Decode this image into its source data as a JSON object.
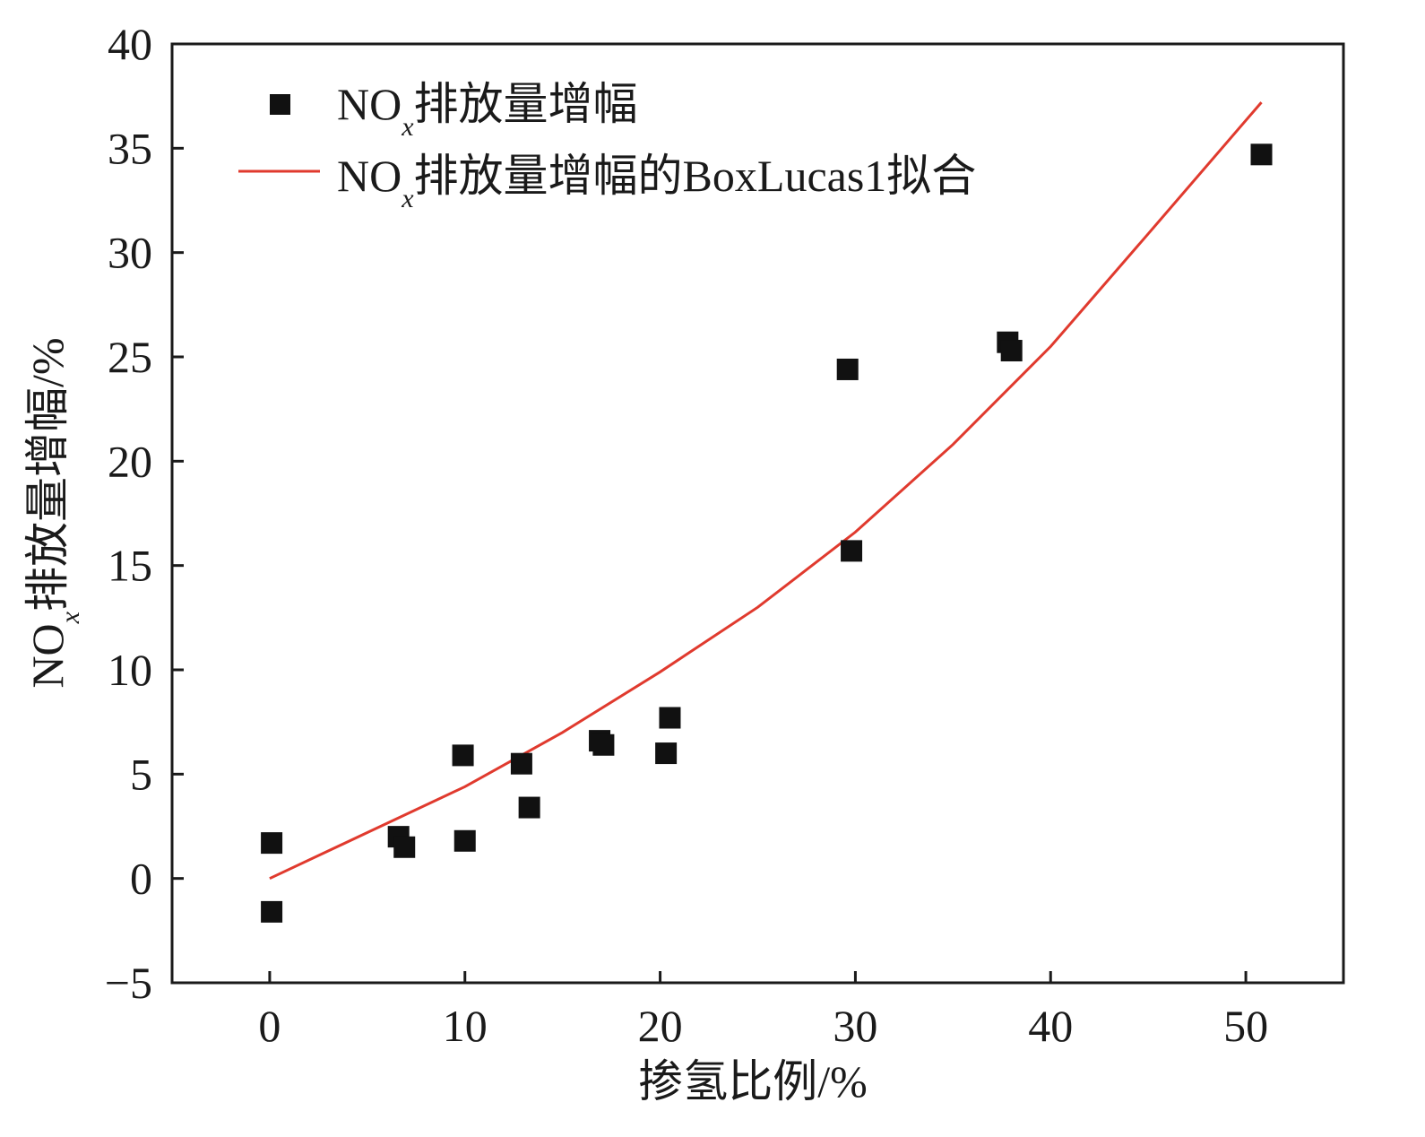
{
  "chart_data": {
    "type": "scatter",
    "xlabel": "掺氢比例/%",
    "ylabel": {
      "prefix": "NO",
      "sub": "x",
      "suffix": "排放量增幅/%"
    },
    "xlim": [
      -5,
      55
    ],
    "ylim": [
      -5,
      40
    ],
    "xticks": [
      0,
      10,
      20,
      30,
      40,
      50
    ],
    "yticks": [
      -5,
      0,
      5,
      10,
      15,
      20,
      25,
      30,
      35,
      40
    ],
    "grid": false,
    "legend_position": "top-left",
    "series": [
      {
        "name": {
          "prefix": "NO",
          "sub": "x",
          "suffix": "排放量增幅"
        },
        "kind": "scatter",
        "marker": "square",
        "color": "#111111",
        "points": [
          [
            0.1,
            1.7
          ],
          [
            0.1,
            -1.6
          ],
          [
            6.6,
            2.0
          ],
          [
            6.9,
            1.5
          ],
          [
            9.9,
            5.9
          ],
          [
            10.0,
            1.8
          ],
          [
            12.9,
            5.5
          ],
          [
            13.3,
            3.4
          ],
          [
            16.9,
            6.6
          ],
          [
            17.1,
            6.4
          ],
          [
            20.3,
            6.0
          ],
          [
            20.5,
            7.7
          ],
          [
            29.6,
            24.4
          ],
          [
            29.8,
            15.7
          ],
          [
            37.8,
            25.7
          ],
          [
            38.0,
            25.3
          ],
          [
            50.8,
            34.7
          ]
        ]
      },
      {
        "name": {
          "prefix": "NO",
          "sub": "x",
          "suffix": "排放量增幅的BoxLucas1拟合"
        },
        "kind": "line",
        "color": "#e03a2e",
        "points": [
          [
            0,
            0.0
          ],
          [
            5,
            2.2
          ],
          [
            10,
            4.4
          ],
          [
            15,
            7.0
          ],
          [
            20,
            9.9
          ],
          [
            25,
            13.0
          ],
          [
            30,
            16.6
          ],
          [
            35,
            20.8
          ],
          [
            40,
            25.5
          ],
          [
            45,
            30.9
          ],
          [
            50.8,
            37.2
          ]
        ]
      }
    ]
  }
}
